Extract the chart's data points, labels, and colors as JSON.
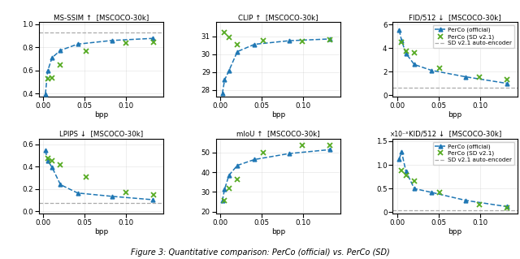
{
  "title": "Figure 3: Quantitative comparison: PerCo (official) vs. PerCo (SD)",
  "subplots": [
    {
      "title": "MS-SSIM ↑  [MSCOCO-30k]",
      "xlabel": "bpp",
      "ylim": [
        0.37,
        1.02
      ],
      "yticks": [
        0.4,
        0.6,
        0.8,
        1.0
      ],
      "hline": 0.928,
      "official_x": [
        0.0027,
        0.0055,
        0.0107,
        0.0208,
        0.0415,
        0.083,
        0.132
      ],
      "official_y": [
        0.395,
        0.597,
        0.71,
        0.774,
        0.828,
        0.86,
        0.878
      ],
      "sd_x": [
        0.0055,
        0.0107,
        0.0208,
        0.0516,
        0.0993,
        0.1326
      ],
      "sd_y": [
        0.525,
        0.532,
        0.648,
        0.765,
        0.84,
        0.845
      ]
    },
    {
      "title": "CLIP ↑  [MSCOCO-30k]",
      "xlabel": "bpp",
      "ylim": [
        27.6,
        31.8
      ],
      "yticks": [
        28,
        29,
        30,
        31
      ],
      "hline": null,
      "official_x": [
        0.0027,
        0.0055,
        0.0107,
        0.0208,
        0.0415,
        0.083,
        0.132
      ],
      "official_y": [
        27.78,
        28.55,
        29.07,
        30.14,
        30.55,
        30.75,
        30.85
      ],
      "sd_x": [
        0.0055,
        0.0107,
        0.0208,
        0.0516,
        0.0993,
        0.1326
      ],
      "sd_y": [
        31.22,
        30.92,
        30.55,
        30.78,
        30.72,
        30.8
      ]
    },
    {
      "title": "FID/512 ↓  [MSCOCO-30k]",
      "xlabel": "bpp",
      "ylim": [
        -0.15,
        6.2
      ],
      "yticks": [
        0,
        2,
        4,
        6
      ],
      "hline": 0.62,
      "official_x": [
        0.0027,
        0.0055,
        0.0107,
        0.0208,
        0.0415,
        0.083,
        0.132
      ],
      "official_y": [
        5.5,
        4.65,
        3.55,
        2.6,
        2.1,
        1.55,
        1.0
      ],
      "sd_x": [
        0.0055,
        0.0107,
        0.0208,
        0.0516,
        0.0993,
        0.1326
      ],
      "sd_y": [
        4.48,
        3.72,
        3.6,
        2.25,
        1.5,
        1.35
      ],
      "legend": true
    },
    {
      "title": "LPIPS ↓  [MSCOCO-30k]",
      "xlabel": "bpp",
      "ylim": [
        -0.02,
        0.65
      ],
      "yticks": [
        0.0,
        0.2,
        0.4,
        0.6
      ],
      "hline": 0.075,
      "official_x": [
        0.0027,
        0.0055,
        0.0107,
        0.0208,
        0.0415,
        0.083,
        0.132
      ],
      "official_y": [
        0.545,
        0.455,
        0.395,
        0.24,
        0.165,
        0.135,
        0.105
      ],
      "sd_x": [
        0.0055,
        0.0107,
        0.0208,
        0.0516,
        0.0993,
        0.1326
      ],
      "sd_y": [
        0.475,
        0.455,
        0.42,
        0.305,
        0.17,
        0.15
      ]
    },
    {
      "title": "mIoU ↑  [MSCOCO-30k]",
      "xlabel": "bpp",
      "ylim": [
        19,
        57
      ],
      "yticks": [
        20,
        30,
        40,
        50
      ],
      "hline": null,
      "official_x": [
        0.0027,
        0.0055,
        0.0107,
        0.0208,
        0.0415,
        0.083,
        0.132
      ],
      "official_y": [
        25.5,
        31.5,
        38.5,
        43.5,
        46.5,
        49.5,
        51.5
      ],
      "sd_x": [
        0.0055,
        0.0107,
        0.0208,
        0.0516,
        0.0993,
        0.1326
      ],
      "sd_y": [
        25.5,
        32.0,
        36.5,
        50.0,
        53.5,
        53.5
      ]
    },
    {
      "title": "KID/512 ↓  [MSCOCO-30k]",
      "xlabel": "bpp",
      "ylim": [
        -3e-05,
        0.00155
      ],
      "yticks": [
        0.0,
        0.0005,
        0.001,
        0.0015
      ],
      "ytick_labels": [
        "0",
        "0.5",
        "1.0",
        "1.5"
      ],
      "scale_label": "×10⁻³",
      "hline": 4.8e-05,
      "official_x": [
        0.0027,
        0.0055,
        0.0107,
        0.0208,
        0.0415,
        0.083,
        0.132
      ],
      "official_y": [
        0.00112,
        0.00128,
        0.00087,
        0.0005,
        0.00042,
        0.00025,
        0.00012
      ],
      "sd_x": [
        0.0055,
        0.0107,
        0.0208,
        0.0516,
        0.0993,
        0.1326
      ],
      "sd_y": [
        0.00088,
        0.00078,
        0.00065,
        0.00042,
        0.00017,
        0.0001
      ],
      "legend": true
    }
  ],
  "blue_color": "#1f77b4",
  "green_color": "#55aa22",
  "hline_color": "#aaaaaa",
  "xlim": [
    -0.005,
    0.145
  ],
  "xticks": [
    0.0,
    0.05,
    0.1
  ]
}
